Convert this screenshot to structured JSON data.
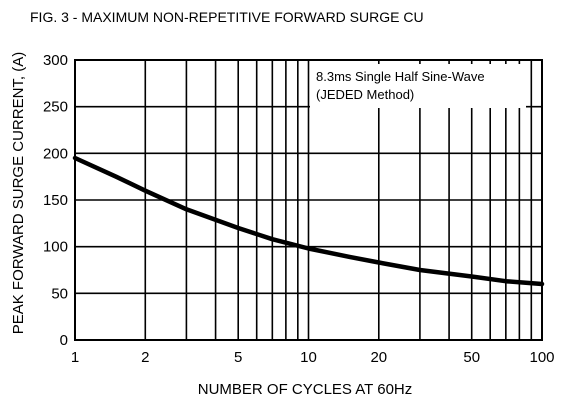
{
  "chart_data": {
    "type": "line",
    "title": "FIG. 3 - MAXIMUM NON-REPETITIVE FORWARD SURGE CU",
    "xlabel": "NUMBER OF CYCLES AT 60Hz",
    "ylabel": "PEAK FORWARD SURGE CURRENT, (A)",
    "x_scale": "log",
    "xlim": [
      1,
      100
    ],
    "ylim": [
      0,
      300
    ],
    "x_ticks": [
      1,
      2,
      5,
      10,
      20,
      50,
      100
    ],
    "x_tick_labels": [
      "1",
      "2",
      "5",
      "10",
      "20",
      "50",
      "100"
    ],
    "y_ticks": [
      0,
      50,
      100,
      150,
      200,
      250,
      300
    ],
    "y_tick_labels": [
      "0",
      "50",
      "100",
      "150",
      "200",
      "250",
      "300"
    ],
    "grid": true,
    "annotation": [
      "8.3ms Single Half Sine-Wave",
      "(JEDED Method)"
    ],
    "series": [
      {
        "x": [
          1,
          1.5,
          2,
          3,
          5,
          7,
          10,
          15,
          20,
          30,
          50,
          70,
          100
        ],
        "y": [
          195,
          175,
          160,
          140,
          120,
          108,
          98,
          89,
          83,
          75,
          68,
          63,
          60
        ]
      }
    ]
  }
}
